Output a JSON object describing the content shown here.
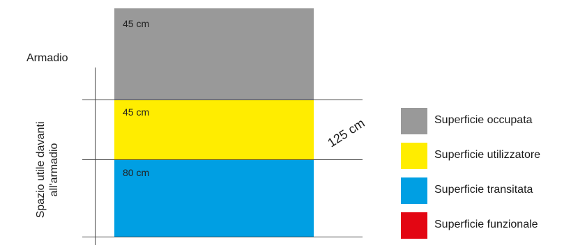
{
  "title": "Armadio",
  "side_label": {
    "line1": "Spazio utile davanti",
    "line2": "all'armadio"
  },
  "total": "125 cm",
  "blocks": [
    {
      "label": "45 cm",
      "color": "#999999"
    },
    {
      "label": "45 cm",
      "color": "#ffed00"
    },
    {
      "label": "80 cm",
      "color": "#009fe3"
    }
  ],
  "legend": [
    {
      "label": "Superficie occupata",
      "color": "#999999"
    },
    {
      "label": "Superficie utilizzatore",
      "color": "#ffed00"
    },
    {
      "label": "Superficie transitata",
      "color": "#009fe3"
    },
    {
      "label": "Superficie funzionale",
      "color": "#e30613"
    }
  ]
}
